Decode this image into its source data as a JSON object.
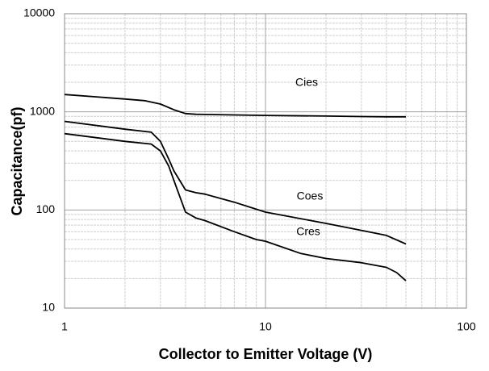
{
  "chart_data": {
    "type": "line",
    "xlabel": "Collector to Emitter Voltage (V)",
    "ylabel": "Capacitance(pf)",
    "xscale": "log",
    "yscale": "log",
    "xlim": [
      1,
      100
    ],
    "ylim": [
      10,
      10000
    ],
    "xticks": [
      1,
      10,
      100
    ],
    "yticks": [
      10,
      100,
      1000,
      10000
    ],
    "grid": true,
    "minor_grid": true,
    "series": [
      {
        "name": "Cies",
        "color": "#000000",
        "x": [
          1,
          2,
          2.5,
          3,
          3.5,
          4,
          4.5,
          5,
          7,
          10,
          20,
          30,
          40,
          50
        ],
        "values": [
          1500,
          1350,
          1300,
          1200,
          1050,
          960,
          945,
          940,
          930,
          920,
          905,
          895,
          890,
          890
        ]
      },
      {
        "name": "Coes",
        "color": "#000000",
        "x": [
          1,
          2,
          2.7,
          3,
          3.3,
          3.5,
          4,
          4.5,
          5,
          7,
          10,
          20,
          30,
          40,
          50
        ],
        "values": [
          800,
          665,
          620,
          500,
          330,
          250,
          160,
          150,
          145,
          120,
          95,
          73,
          62,
          55,
          45
        ]
      },
      {
        "name": "Cres",
        "color": "#000000",
        "x": [
          1,
          2,
          2.7,
          3,
          3.3,
          3.5,
          4,
          4.5,
          5,
          7,
          9,
          10,
          15,
          20,
          30,
          40,
          45,
          50
        ],
        "values": [
          600,
          500,
          470,
          400,
          280,
          200,
          95,
          83,
          78,
          60,
          50,
          48,
          36,
          32,
          29,
          26,
          23,
          19
        ]
      }
    ]
  }
}
